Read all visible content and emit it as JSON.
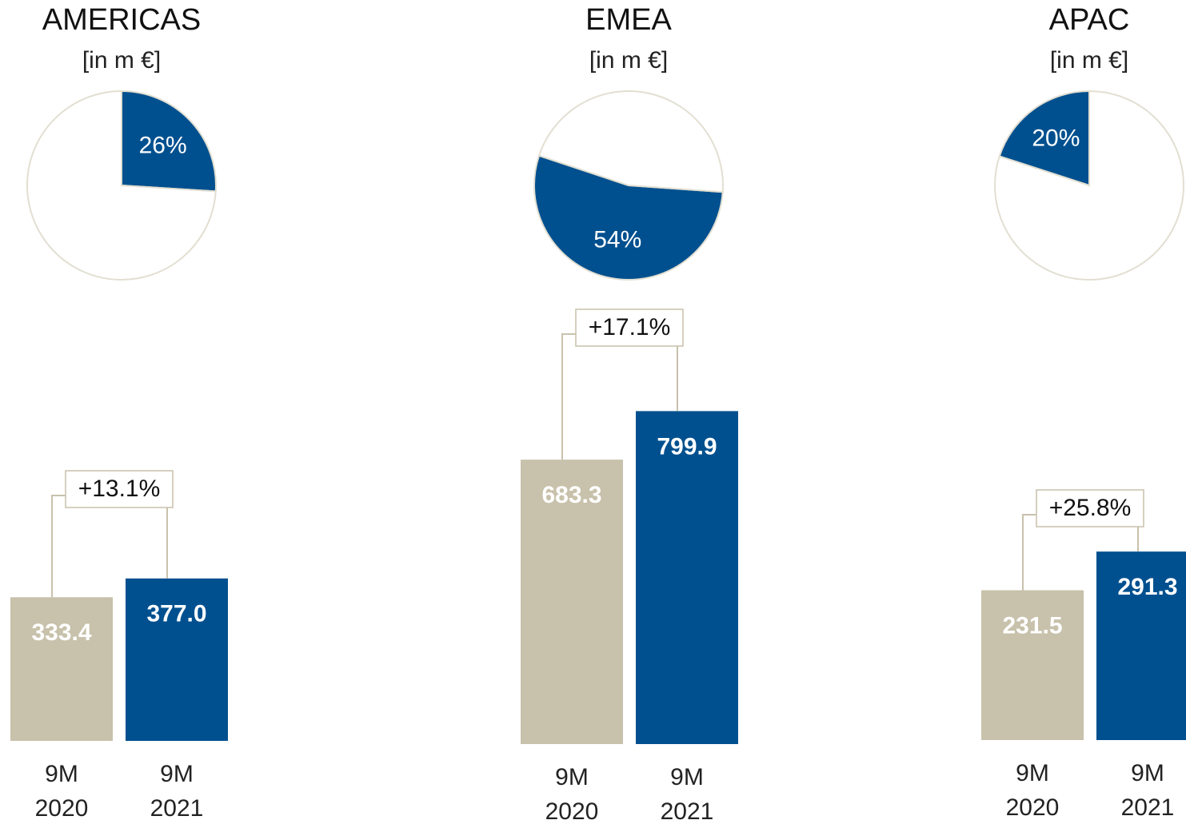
{
  "chart_data": [
    {
      "type": "pie",
      "title": "AMERICAS",
      "subtitle": "[in m €]",
      "values": [
        26,
        74
      ],
      "value_labels": [
        "26%",
        null
      ],
      "colors": [
        "#00508f",
        "#ffffff"
      ]
    },
    {
      "type": "bar",
      "categories": [
        "9M 2020",
        "9M 2021"
      ],
      "values": [
        333.4,
        377.0
      ],
      "value_labels": [
        "333.4",
        "377.0"
      ],
      "colors": [
        "#c8c1ab",
        "#00508f"
      ],
      "ylim": [
        0,
        1113
      ],
      "annotation": "+13.1%"
    },
    {
      "type": "pie",
      "title": "EMEA",
      "subtitle": "[in m €]",
      "values": [
        54,
        46
      ],
      "value_labels": [
        "54%",
        null
      ],
      "colors": [
        "#00508f",
        "#ffffff"
      ]
    },
    {
      "type": "bar",
      "categories": [
        "9M 2020",
        "9M 2021"
      ],
      "values": [
        683.3,
        799.9
      ],
      "value_labels": [
        "683.3",
        "799.9"
      ],
      "colors": [
        "#c8c1ab",
        "#00508f"
      ],
      "ylim": [
        0,
        1152
      ],
      "annotation": "+17.1%"
    },
    {
      "type": "pie",
      "title": "APAC",
      "subtitle": "[in m €]",
      "values": [
        20,
        80
      ],
      "value_labels": [
        "20%",
        null
      ],
      "colors": [
        "#00508f",
        "#ffffff"
      ]
    },
    {
      "type": "bar",
      "categories": [
        "9M 2020",
        "9M 2021"
      ],
      "values": [
        231.5,
        291.3
      ],
      "value_labels": [
        "231.5",
        "291.3"
      ],
      "colors": [
        "#c8c1ab",
        "#00508f"
      ],
      "ylim": [
        0,
        741
      ],
      "annotation": "+25.8%"
    }
  ]
}
